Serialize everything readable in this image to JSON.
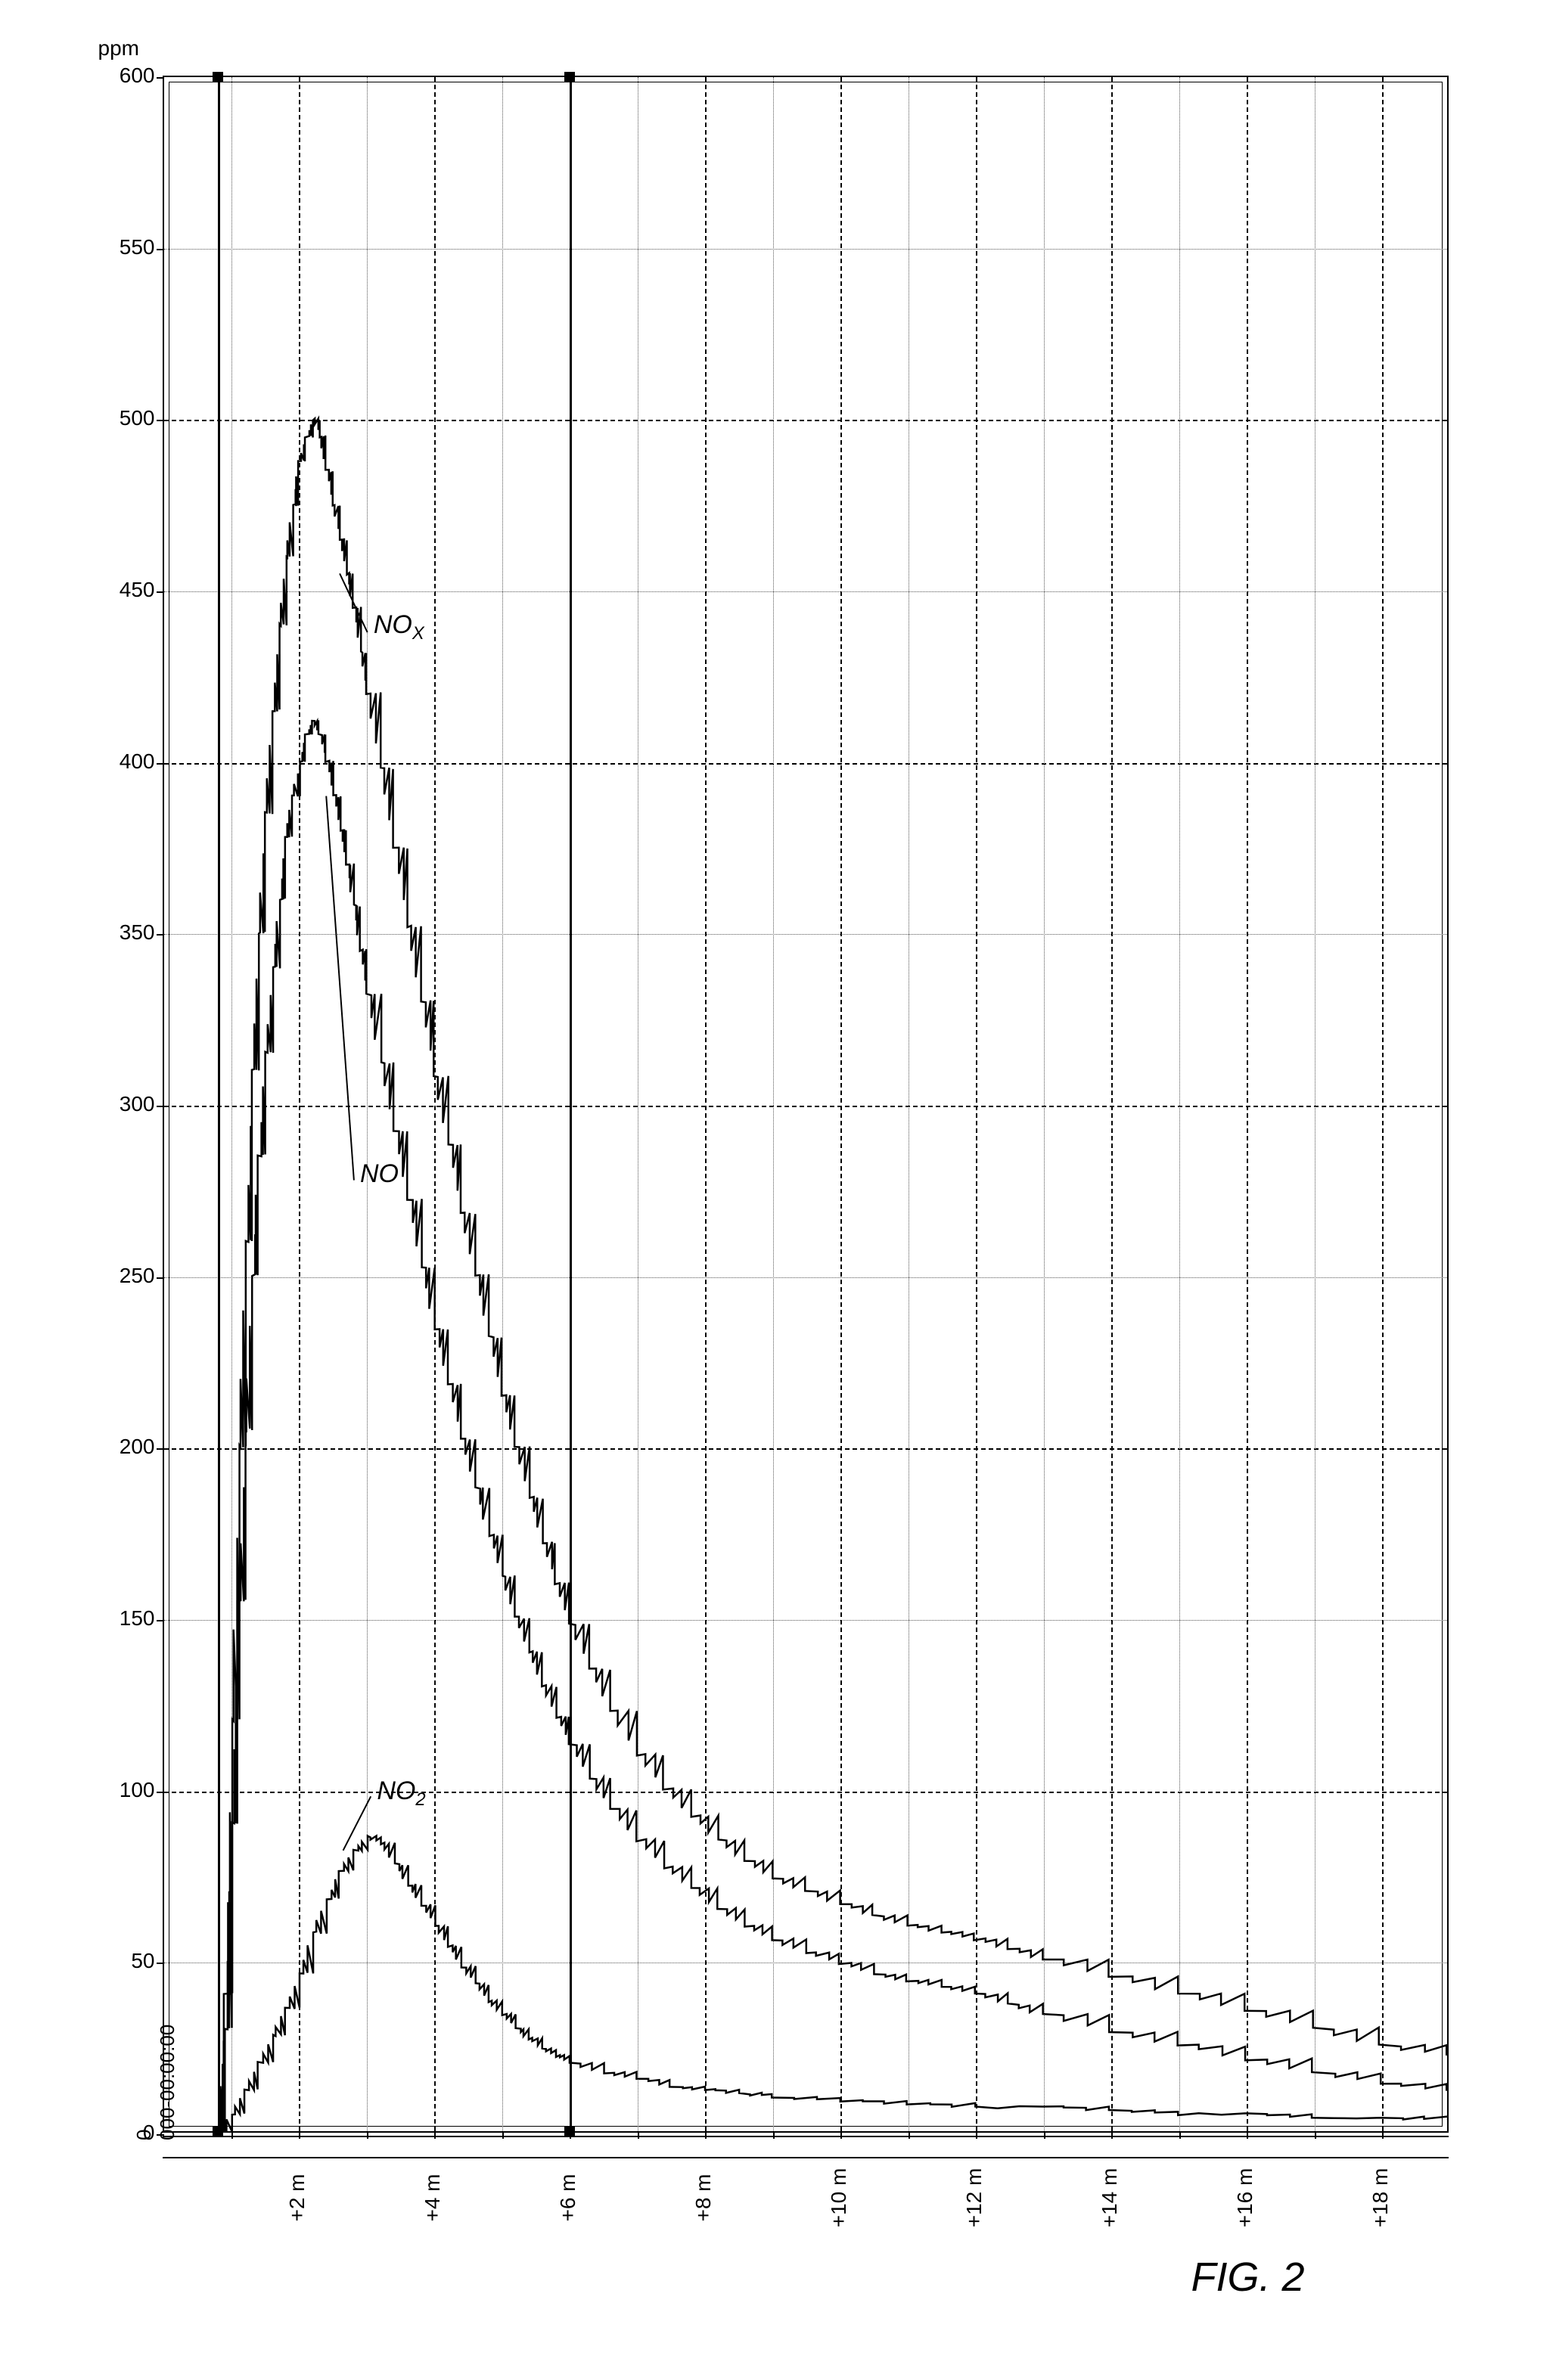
{
  "figure_label": "FIG. 2",
  "chart": {
    "type": "line",
    "y_axis": {
      "label": "ppm",
      "min": 0,
      "max": 600,
      "major_step": 100,
      "minor_step": 50,
      "ticks": [
        0,
        50,
        100,
        150,
        200,
        250,
        300,
        350,
        400,
        450,
        500,
        550,
        600
      ],
      "label_fontsize": 28
    },
    "x_axis": {
      "label_origin_top": "0",
      "label_origin_bottom": "000-00:00:00",
      "min": 0,
      "max": 19,
      "major_step": 2,
      "minor_step": 1,
      "ticks": [
        "+2 m",
        "+4 m",
        "+6 m",
        "+8 m",
        "+10 m",
        "+12 m",
        "+14 m",
        "+16 m",
        "+18 m"
      ],
      "tick_positions": [
        2,
        4,
        6,
        8,
        10,
        12,
        14,
        16,
        18
      ],
      "label_fontsize": 28
    },
    "grid": {
      "major_color": "#000000",
      "minor_color": "#555555",
      "major_dash": "8,8",
      "minor_dash": "3,6"
    },
    "vertical_markers": [
      0.8,
      6.0
    ],
    "background_color": "#ffffff",
    "border_color": "#000000",
    "line_color": "#000000",
    "line_width": 2.5,
    "series": [
      {
        "name": "NOx",
        "label_html": "NO<sub>X</sub>",
        "label_pos": {
          "x": 3.1,
          "y": 440
        },
        "points": [
          [
            0.8,
            0
          ],
          [
            0.9,
            40
          ],
          [
            1.0,
            120
          ],
          [
            1.1,
            200
          ],
          [
            1.2,
            260
          ],
          [
            1.3,
            310
          ],
          [
            1.4,
            350
          ],
          [
            1.5,
            385
          ],
          [
            1.6,
            415
          ],
          [
            1.7,
            440
          ],
          [
            1.8,
            460
          ],
          [
            1.9,
            475
          ],
          [
            2.0,
            488
          ],
          [
            2.1,
            495
          ],
          [
            2.2,
            500
          ],
          [
            2.3,
            495
          ],
          [
            2.4,
            485
          ],
          [
            2.5,
            475
          ],
          [
            2.6,
            465
          ],
          [
            2.7,
            455
          ],
          [
            2.8,
            445
          ],
          [
            2.9,
            432
          ],
          [
            3.0,
            420
          ],
          [
            3.2,
            398
          ],
          [
            3.4,
            375
          ],
          [
            3.6,
            352
          ],
          [
            3.8,
            330
          ],
          [
            4.0,
            308
          ],
          [
            4.2,
            288
          ],
          [
            4.4,
            268
          ],
          [
            4.6,
            250
          ],
          [
            4.8,
            232
          ],
          [
            5.0,
            215
          ],
          [
            5.2,
            200
          ],
          [
            5.4,
            185
          ],
          [
            5.6,
            172
          ],
          [
            5.8,
            160
          ],
          [
            6.0,
            148
          ],
          [
            6.3,
            135
          ],
          [
            6.6,
            123
          ],
          [
            7.0,
            110
          ],
          [
            7.4,
            100
          ],
          [
            7.8,
            92
          ],
          [
            8.2,
            85
          ],
          [
            8.6,
            79
          ],
          [
            9.0,
            74
          ],
          [
            9.5,
            70
          ],
          [
            10.0,
            66
          ],
          [
            10.5,
            63
          ],
          [
            11.0,
            60
          ],
          [
            11.5,
            58
          ],
          [
            12.0,
            56
          ],
          [
            12.5,
            53
          ],
          [
            13.0,
            50
          ],
          [
            14.0,
            45
          ],
          [
            15.0,
            40
          ],
          [
            16.0,
            35
          ],
          [
            17.0,
            30
          ],
          [
            18.0,
            25
          ],
          [
            19.0,
            22
          ]
        ]
      },
      {
        "name": "NO",
        "label_html": "NO",
        "label_pos": {
          "x": 2.9,
          "y": 280
        },
        "points": [
          [
            0.8,
            0
          ],
          [
            0.9,
            30
          ],
          [
            1.0,
            90
          ],
          [
            1.1,
            155
          ],
          [
            1.2,
            205
          ],
          [
            1.3,
            250
          ],
          [
            1.4,
            285
          ],
          [
            1.5,
            315
          ],
          [
            1.6,
            340
          ],
          [
            1.7,
            360
          ],
          [
            1.8,
            378
          ],
          [
            1.9,
            390
          ],
          [
            2.0,
            400
          ],
          [
            2.1,
            408
          ],
          [
            2.2,
            412
          ],
          [
            2.3,
            408
          ],
          [
            2.4,
            400
          ],
          [
            2.5,
            390
          ],
          [
            2.6,
            380
          ],
          [
            2.7,
            370
          ],
          [
            2.8,
            358
          ],
          [
            2.9,
            345
          ],
          [
            3.0,
            332
          ],
          [
            3.2,
            312
          ],
          [
            3.4,
            292
          ],
          [
            3.6,
            272
          ],
          [
            3.8,
            252
          ],
          [
            4.0,
            234
          ],
          [
            4.2,
            218
          ],
          [
            4.4,
            202
          ],
          [
            4.6,
            188
          ],
          [
            4.8,
            174
          ],
          [
            5.0,
            162
          ],
          [
            5.2,
            150
          ],
          [
            5.4,
            140
          ],
          [
            5.6,
            130
          ],
          [
            5.8,
            121
          ],
          [
            6.0,
            113
          ],
          [
            6.3,
            103
          ],
          [
            6.6,
            94
          ],
          [
            7.0,
            85
          ],
          [
            7.4,
            77
          ],
          [
            7.8,
            71
          ],
          [
            8.2,
            65
          ],
          [
            8.6,
            60
          ],
          [
            9.0,
            56
          ],
          [
            9.5,
            52
          ],
          [
            10.0,
            49
          ],
          [
            10.5,
            46
          ],
          [
            11.0,
            44
          ],
          [
            11.5,
            42
          ],
          [
            12.0,
            40
          ],
          [
            12.5,
            37
          ],
          [
            13.0,
            34
          ],
          [
            14.0,
            29
          ],
          [
            15.0,
            25
          ],
          [
            16.0,
            21
          ],
          [
            17.0,
            17
          ],
          [
            18.0,
            14
          ],
          [
            19.0,
            12
          ]
        ]
      },
      {
        "name": "NO2",
        "label_html": "NO<sub>2</sub>",
        "label_pos": {
          "x": 3.15,
          "y": 100
        },
        "points": [
          [
            0.8,
            0
          ],
          [
            1.0,
            5
          ],
          [
            1.2,
            12
          ],
          [
            1.4,
            20
          ],
          [
            1.6,
            28
          ],
          [
            1.8,
            36
          ],
          [
            2.0,
            46
          ],
          [
            2.2,
            58
          ],
          [
            2.4,
            68
          ],
          [
            2.6,
            76
          ],
          [
            2.8,
            82
          ],
          [
            3.0,
            86
          ],
          [
            3.2,
            84
          ],
          [
            3.4,
            78
          ],
          [
            3.6,
            72
          ],
          [
            3.8,
            66
          ],
          [
            4.0,
            60
          ],
          [
            4.2,
            54
          ],
          [
            4.4,
            48
          ],
          [
            4.6,
            43
          ],
          [
            4.8,
            38
          ],
          [
            5.0,
            34
          ],
          [
            5.2,
            30
          ],
          [
            5.4,
            27
          ],
          [
            5.6,
            24
          ],
          [
            5.8,
            22
          ],
          [
            6.0,
            20
          ],
          [
            6.5,
            17
          ],
          [
            7.0,
            15
          ],
          [
            7.5,
            13
          ],
          [
            8.0,
            12
          ],
          [
            8.5,
            11
          ],
          [
            9.0,
            10
          ],
          [
            10.0,
            9
          ],
          [
            11.0,
            8
          ],
          [
            12.0,
            7
          ],
          [
            13.0,
            7
          ],
          [
            14.0,
            6
          ],
          [
            15.0,
            5
          ],
          [
            16.0,
            5
          ],
          [
            17.0,
            4
          ],
          [
            18.0,
            4
          ],
          [
            19.0,
            3
          ]
        ]
      }
    ]
  }
}
